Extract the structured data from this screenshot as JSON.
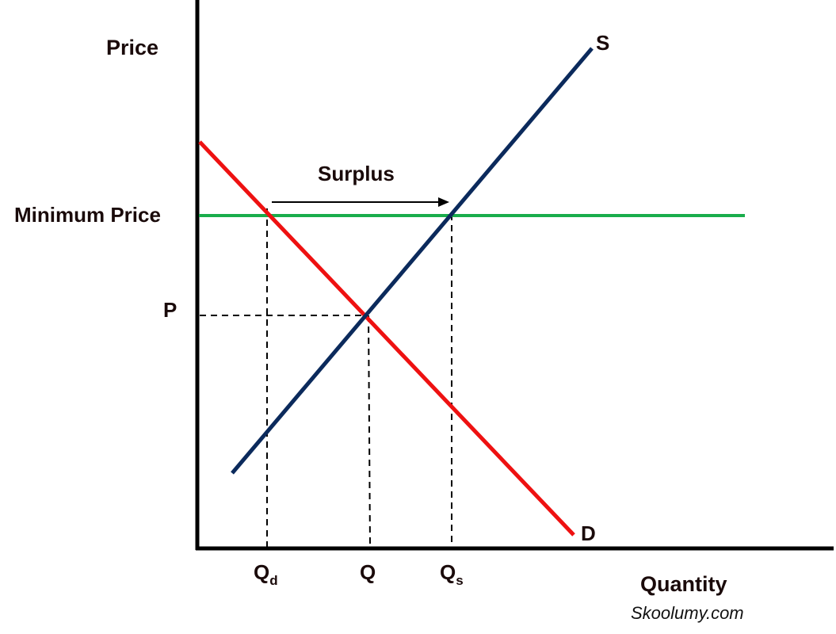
{
  "labels": {
    "y_axis": "Price",
    "x_axis": "Quantity",
    "minimum_price": "Minimum Price",
    "price": "P",
    "quantity": "Q",
    "quantity_demanded_main": "Q",
    "quantity_demanded_sub": "d",
    "quantity_supplied_main": "Q",
    "quantity_supplied_sub": "s",
    "supply": "S",
    "demand": "D",
    "surplus": "Surplus",
    "credit": "Skoolumy.com"
  },
  "colors": {
    "axis": "#000000",
    "supply": "#0b2a5c",
    "demand": "#ee1111",
    "minimum_price": "#1aad4b",
    "guide": "#000000",
    "text": "#1a0a0a"
  }
}
